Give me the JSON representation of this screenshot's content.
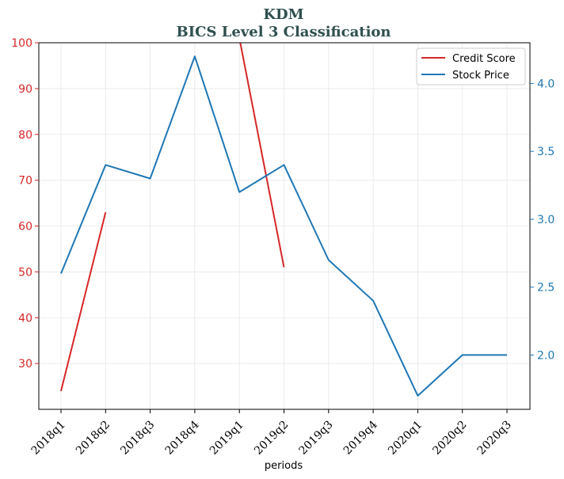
{
  "chart_data": {
    "type": "line",
    "title": "KDM",
    "subtitle": "BICS Level 3 Classification",
    "xlabel": "periods",
    "categories": [
      "2018q1",
      "2018q2",
      "2018q3",
      "2018q4",
      "2019q1",
      "2019q2",
      "2019q3",
      "2019q4",
      "2020q1",
      "2020q2",
      "2020q3"
    ],
    "left_axis": {
      "ylim": [
        20,
        100
      ],
      "ticks": [
        30,
        40,
        50,
        60,
        70,
        80,
        90,
        100
      ],
      "color": "#d62728"
    },
    "right_axis": {
      "ylim": [
        1.6,
        4.3
      ],
      "ticks": [
        2.0,
        2.5,
        3.0,
        3.5,
        4.0
      ],
      "tick_labels": [
        "2.0",
        "2.5",
        "3.0",
        "3.5",
        "4.0"
      ],
      "color": "#1f77b4"
    },
    "series": [
      {
        "name": "Credit Score",
        "axis": "left",
        "color": "#d62728",
        "values": [
          24,
          63,
          null,
          null,
          101,
          51,
          null,
          null,
          null,
          null,
          null
        ]
      },
      {
        "name": "Stock Price",
        "axis": "right",
        "color": "#1f77b4",
        "values": [
          2.6,
          3.4,
          3.3,
          4.2,
          3.2,
          3.4,
          2.7,
          2.4,
          1.7,
          2.0,
          2.0
        ]
      }
    ],
    "grid": true,
    "legend": "top-right"
  }
}
